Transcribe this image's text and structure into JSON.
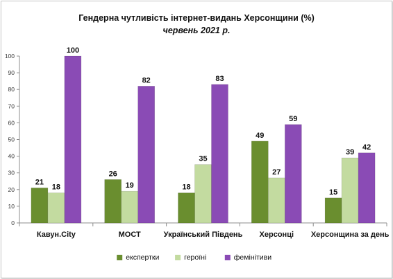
{
  "chart_data": {
    "type": "bar",
    "title": "Гендерна чутливість інтернет-видань Херсонщини (%)",
    "subtitle": "червень 2021 р.",
    "categories": [
      "Кавун.City",
      "МОСТ",
      "Український Південь",
      "Херсонці",
      "Херсонщина за день"
    ],
    "series": [
      {
        "name": "експертки",
        "color": "#6a8e2f",
        "values": [
          21,
          26,
          18,
          49,
          15
        ]
      },
      {
        "name": "героїні",
        "color": "#c3dba0",
        "values": [
          18,
          19,
          35,
          27,
          39
        ]
      },
      {
        "name": "фемінітиви",
        "color": "#8a4bb5",
        "values": [
          100,
          82,
          83,
          59,
          42
        ]
      }
    ],
    "ylim": [
      0,
      100
    ],
    "yticks": [
      0,
      10,
      20,
      30,
      40,
      50,
      60,
      70,
      80,
      90,
      100
    ],
    "legend": "bottom",
    "grid": false
  }
}
